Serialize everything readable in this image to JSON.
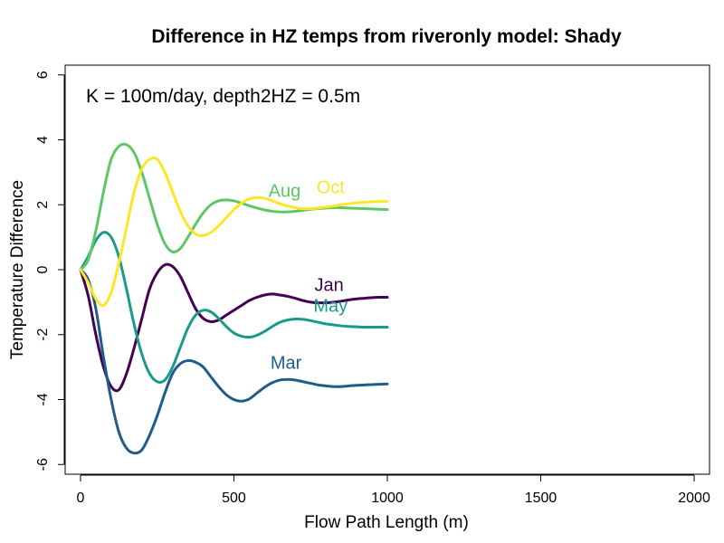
{
  "chart_data": {
    "type": "line",
    "title": "Difference in HZ temps from riveronly model: Shady",
    "xlabel": "Flow Path Length (m)",
    "ylabel": "Temperature Difference",
    "annotation": "K = 100m/day, depth2HZ = 0.5m",
    "xlim": [
      -50,
      2050
    ],
    "ylim": [
      -6.3,
      6.3
    ],
    "x_ticks": [
      0,
      500,
      1000,
      1500,
      2000
    ],
    "y_ticks": [
      -6,
      -4,
      -2,
      0,
      2,
      4,
      6
    ],
    "grid": false,
    "x": [
      0,
      25,
      50,
      75,
      100,
      125,
      150,
      175,
      200,
      225,
      250,
      275,
      300,
      325,
      350,
      375,
      400,
      425,
      450,
      475,
      500,
      525,
      550,
      575,
      600,
      625,
      650,
      675,
      700,
      725,
      750,
      775,
      800,
      825,
      850,
      875,
      900,
      925,
      950,
      975,
      1000
    ],
    "series": [
      {
        "name": "Jan",
        "color": "#440154",
        "values": [
          0,
          -0.8,
          -2.0,
          -3.0,
          -3.6,
          -3.7,
          -3.2,
          -2.4,
          -1.5,
          -0.6,
          -0.1,
          0.15,
          0.1,
          -0.2,
          -0.7,
          -1.2,
          -1.5,
          -1.6,
          -1.55,
          -1.4,
          -1.25,
          -1.1,
          -0.95,
          -0.85,
          -0.78,
          -0.75,
          -0.78,
          -0.82,
          -0.88,
          -0.95,
          -1.0,
          -1.02,
          -1.02,
          -1.0,
          -0.97,
          -0.93,
          -0.9,
          -0.88,
          -0.86,
          -0.85,
          -0.85
        ]
      },
      {
        "name": "Mar",
        "color": "#1e5c8a",
        "values": [
          0,
          -0.3,
          -1.2,
          -2.7,
          -4.0,
          -5.0,
          -5.5,
          -5.65,
          -5.55,
          -5.1,
          -4.5,
          -3.8,
          -3.2,
          -2.9,
          -2.8,
          -2.85,
          -3.0,
          -3.3,
          -3.6,
          -3.85,
          -4.0,
          -4.05,
          -3.98,
          -3.8,
          -3.62,
          -3.48,
          -3.4,
          -3.38,
          -3.4,
          -3.45,
          -3.5,
          -3.55,
          -3.58,
          -3.6,
          -3.6,
          -3.58,
          -3.56,
          -3.55,
          -3.54,
          -3.53,
          -3.52
        ]
      },
      {
        "name": "May",
        "color": "#1a9a8a",
        "values": [
          0,
          0.4,
          0.9,
          1.15,
          1.0,
          0.4,
          -0.6,
          -1.7,
          -2.6,
          -3.2,
          -3.45,
          -3.4,
          -3.0,
          -2.4,
          -1.8,
          -1.4,
          -1.25,
          -1.3,
          -1.5,
          -1.75,
          -1.95,
          -2.05,
          -2.08,
          -2.02,
          -1.9,
          -1.75,
          -1.62,
          -1.55,
          -1.52,
          -1.53,
          -1.57,
          -1.62,
          -1.67,
          -1.7,
          -1.73,
          -1.75,
          -1.76,
          -1.77,
          -1.77,
          -1.77,
          -1.77
        ]
      },
      {
        "name": "Aug",
        "color": "#5cc863",
        "values": [
          0,
          0.3,
          1.2,
          2.4,
          3.4,
          3.8,
          3.85,
          3.6,
          3.0,
          2.2,
          1.4,
          0.8,
          0.55,
          0.65,
          1.0,
          1.4,
          1.75,
          2.0,
          2.12,
          2.15,
          2.12,
          2.05,
          1.97,
          1.9,
          1.84,
          1.8,
          1.78,
          1.78,
          1.8,
          1.83,
          1.86,
          1.88,
          1.9,
          1.91,
          1.91,
          1.9,
          1.89,
          1.88,
          1.87,
          1.86,
          1.85
        ]
      },
      {
        "name": "Oct",
        "color": "#fde725",
        "values": [
          0,
          -0.4,
          -0.9,
          -1.1,
          -0.7,
          0.2,
          1.3,
          2.4,
          3.1,
          3.4,
          3.4,
          3.0,
          2.4,
          1.8,
          1.35,
          1.1,
          1.05,
          1.15,
          1.35,
          1.6,
          1.85,
          2.05,
          2.18,
          2.22,
          2.2,
          2.12,
          2.03,
          1.96,
          1.91,
          1.88,
          1.88,
          1.9,
          1.93,
          1.96,
          2.0,
          2.03,
          2.06,
          2.08,
          2.09,
          2.1,
          2.1
        ]
      }
    ]
  },
  "series_labels": [
    {
      "text": "Jan",
      "x": 810,
      "y": -0.65,
      "color": "#440154"
    },
    {
      "text": "Mar",
      "x": 670,
      "y": -3.05,
      "color": "#1e5c8a"
    },
    {
      "text": "May",
      "x": 815,
      "y": -1.3,
      "color": "#1a9a8a"
    },
    {
      "text": "Aug",
      "x": 665,
      "y": 2.25,
      "color": "#5cc863"
    },
    {
      "text": "Oct",
      "x": 815,
      "y": 2.35,
      "color": "#fde725"
    }
  ]
}
